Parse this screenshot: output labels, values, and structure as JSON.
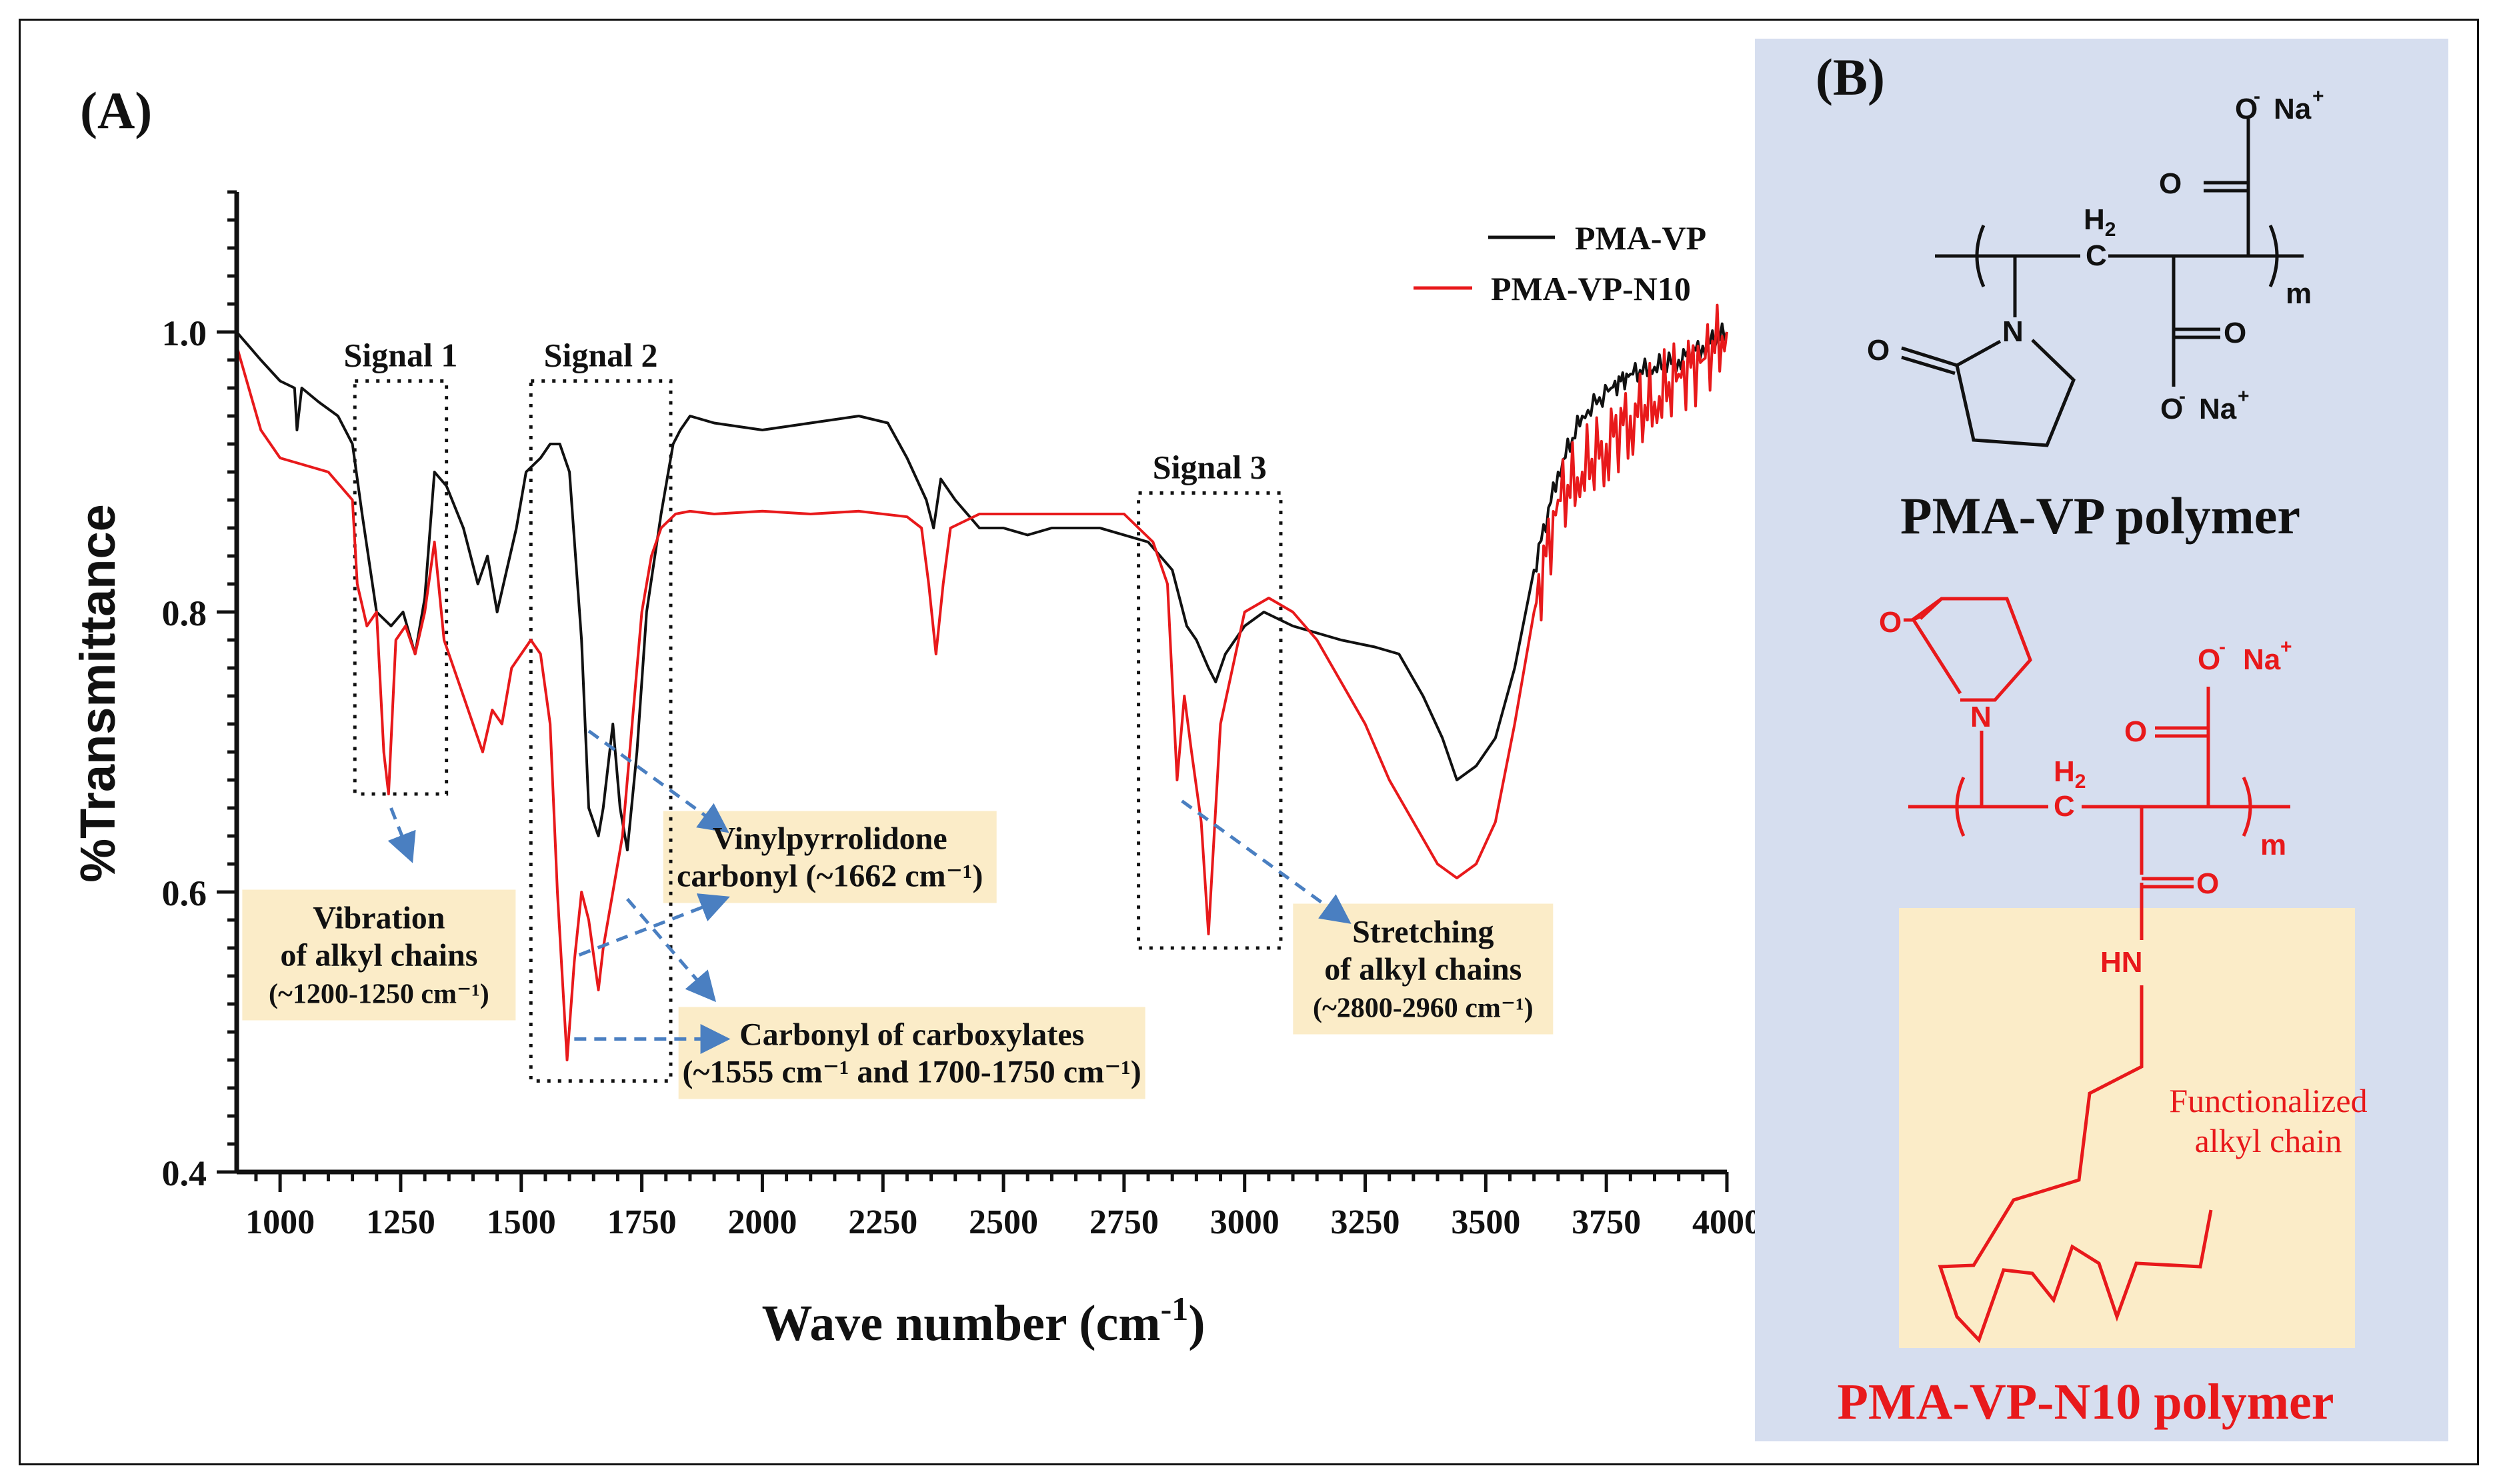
{
  "panel_a": {
    "label": "(A)",
    "chart_data": {
      "type": "line",
      "xlabel": "Wave number (cm",
      "xlabel_sup": "-1",
      "xlabel_close": ")",
      "ylabel": "%Transmittance",
      "xlim": [
        910,
        4000
      ],
      "ylim": [
        0.4,
        1.1
      ],
      "xticks": [
        1000,
        1250,
        1500,
        1750,
        2000,
        2250,
        2500,
        2750,
        3000,
        3250,
        3500,
        3750,
        4000
      ],
      "yticks": [
        0.4,
        0.6,
        0.8,
        1.0
      ],
      "ytick_labels": [
        "0.4",
        "0.6",
        "0.8",
        "1.0"
      ],
      "legend_position": "top-right",
      "series": [
        {
          "name": "PMA-VP",
          "color": "#111111",
          "x": [
            910,
            960,
            1000,
            1030,
            1035,
            1045,
            1080,
            1120,
            1150,
            1170,
            1200,
            1230,
            1255,
            1280,
            1300,
            1320,
            1345,
            1380,
            1410,
            1430,
            1450,
            1470,
            1490,
            1510,
            1540,
            1560,
            1580,
            1600,
            1625,
            1640,
            1660,
            1670,
            1690,
            1705,
            1720,
            1740,
            1760,
            1790,
            1815,
            1830,
            1850,
            1900,
            2000,
            2100,
            2200,
            2260,
            2300,
            2340,
            2355,
            2370,
            2400,
            2450,
            2500,
            2550,
            2600,
            2700,
            2800,
            2850,
            2880,
            2900,
            2925,
            2940,
            2960,
            3000,
            3040,
            3100,
            3200,
            3270,
            3320,
            3370,
            3410,
            3440,
            3480,
            3520,
            3560,
            3600,
            3650,
            3700,
            3760,
            3800,
            3850,
            3900,
            3950,
            4000
          ],
          "y": [
            1.0,
            0.98,
            0.965,
            0.96,
            0.93,
            0.96,
            0.95,
            0.94,
            0.92,
            0.87,
            0.8,
            0.79,
            0.8,
            0.77,
            0.81,
            0.9,
            0.89,
            0.86,
            0.82,
            0.84,
            0.8,
            0.83,
            0.86,
            0.9,
            0.91,
            0.92,
            0.92,
            0.9,
            0.78,
            0.66,
            0.64,
            0.66,
            0.72,
            0.66,
            0.63,
            0.7,
            0.8,
            0.87,
            0.92,
            0.93,
            0.94,
            0.935,
            0.93,
            0.935,
            0.94,
            0.935,
            0.91,
            0.88,
            0.86,
            0.895,
            0.88,
            0.86,
            0.86,
            0.855,
            0.86,
            0.86,
            0.85,
            0.83,
            0.79,
            0.78,
            0.76,
            0.75,
            0.77,
            0.79,
            0.8,
            0.79,
            0.78,
            0.775,
            0.77,
            0.74,
            0.71,
            0.68,
            0.69,
            0.71,
            0.76,
            0.83,
            0.9,
            0.94,
            0.96,
            0.97,
            0.975,
            0.98,
            0.99,
            1.0
          ]
        },
        {
          "name": "PMA-VP-N10",
          "color": "#e8191b",
          "x": [
            910,
            960,
            1000,
            1050,
            1100,
            1150,
            1160,
            1180,
            1200,
            1215,
            1225,
            1240,
            1260,
            1280,
            1300,
            1320,
            1340,
            1380,
            1420,
            1440,
            1460,
            1480,
            1500,
            1520,
            1540,
            1560,
            1575,
            1595,
            1610,
            1625,
            1640,
            1660,
            1670,
            1690,
            1710,
            1730,
            1750,
            1770,
            1790,
            1820,
            1850,
            1900,
            2000,
            2100,
            2200,
            2300,
            2330,
            2345,
            2360,
            2375,
            2390,
            2450,
            2550,
            2650,
            2750,
            2780,
            2810,
            2840,
            2860,
            2875,
            2890,
            2910,
            2925,
            2950,
            2975,
            3000,
            3050,
            3100,
            3150,
            3200,
            3250,
            3300,
            3350,
            3400,
            3440,
            3480,
            3520,
            3560,
            3600,
            3650,
            3700,
            3750,
            3800,
            3850,
            3900,
            3950,
            4000
          ],
          "y": [
            0.99,
            0.93,
            0.91,
            0.905,
            0.9,
            0.88,
            0.82,
            0.79,
            0.8,
            0.7,
            0.67,
            0.78,
            0.79,
            0.77,
            0.8,
            0.85,
            0.78,
            0.74,
            0.7,
            0.73,
            0.72,
            0.76,
            0.77,
            0.78,
            0.77,
            0.72,
            0.6,
            0.48,
            0.55,
            0.6,
            0.58,
            0.53,
            0.56,
            0.6,
            0.64,
            0.72,
            0.8,
            0.84,
            0.86,
            0.87,
            0.872,
            0.87,
            0.872,
            0.87,
            0.872,
            0.868,
            0.86,
            0.82,
            0.77,
            0.82,
            0.86,
            0.87,
            0.87,
            0.87,
            0.87,
            0.86,
            0.85,
            0.82,
            0.68,
            0.74,
            0.7,
            0.65,
            0.57,
            0.72,
            0.76,
            0.8,
            0.81,
            0.8,
            0.78,
            0.75,
            0.72,
            0.68,
            0.65,
            0.62,
            0.61,
            0.62,
            0.65,
            0.72,
            0.8,
            0.88,
            0.9,
            0.92,
            0.94,
            0.95,
            0.97,
            0.98,
            1.0
          ]
        }
      ],
      "signals": [
        {
          "label": "Signal 1",
          "x_range": [
            1155,
            1345
          ],
          "y_range": [
            0.67,
            0.965
          ]
        },
        {
          "label": "Signal 2",
          "x_range": [
            1520,
            1810
          ],
          "y_range": [
            0.465,
            0.965
          ]
        },
        {
          "label": "Signal 3",
          "x_range": [
            2780,
            3075
          ],
          "y_range": [
            0.56,
            0.885
          ]
        }
      ],
      "annotations": [
        {
          "lines": [
            "Vibration",
            "of alkyl chains",
            "(~1200-1250 cm⁻¹)"
          ],
          "from": [
            1230,
            0.66
          ],
          "to": [
            1270,
            0.625
          ],
          "box_anchor": [
            1205,
            0.555
          ]
        },
        {
          "lines": [
            "Vinylpyrrolidone",
            "carbonyl (~1662 cm⁻¹)"
          ],
          "from": [
            1640,
            0.715
          ],
          "to": [
            1920,
            0.645
          ],
          "box_anchor": [
            2140,
            0.625
          ]
        },
        {
          "lines": [
            "Carbonyl of carboxylates",
            "(~1555 cm⁻¹ and 1700-1750 cm⁻¹)"
          ],
          "from": [
            1610,
            0.495
          ],
          "to": [
            1920,
            0.495
          ],
          "box_anchor": [
            2310,
            0.485
          ]
        },
        {
          "lines": [
            "Stretching",
            "of alkyl chains",
            "(~2800-2960 cm⁻¹)"
          ],
          "from": [
            2870,
            0.665
          ],
          "to": [
            3210,
            0.58
          ],
          "box_anchor": [
            3370,
            0.545
          ]
        }
      ]
    }
  },
  "panel_b": {
    "label": "(B)",
    "bg_color": "#d6deef",
    "highlight_color": "#fbecc8",
    "structure1": {
      "title": "PMA-VP polymer",
      "atoms": {
        "o_minus_na_top": "O",
        "na_top": "Na",
        "o_top": "O",
        "h2": "H",
        "h2_sub": "2",
        "c": "C",
        "n": "N",
        "o_ring": "O",
        "o_mid": "O",
        "o_minus_na_bottom": "O",
        "na_bottom": "Na",
        "m": "m"
      }
    },
    "structure2": {
      "title": "PMA-VP-N10 polymer",
      "color": "#e8191b",
      "atoms": {
        "o_ring": "O",
        "n": "N",
        "o_minus": "O",
        "na": "Na",
        "o_carboxyl": "O",
        "h2": "H",
        "h2_sub": "2",
        "c": "C",
        "m": "m",
        "o_amide": "O",
        "hn": "HN"
      },
      "label_line1": "Functionalized",
      "label_line2": "alkyl chain"
    },
    "charge_minus": "-",
    "charge_plus": "+"
  }
}
